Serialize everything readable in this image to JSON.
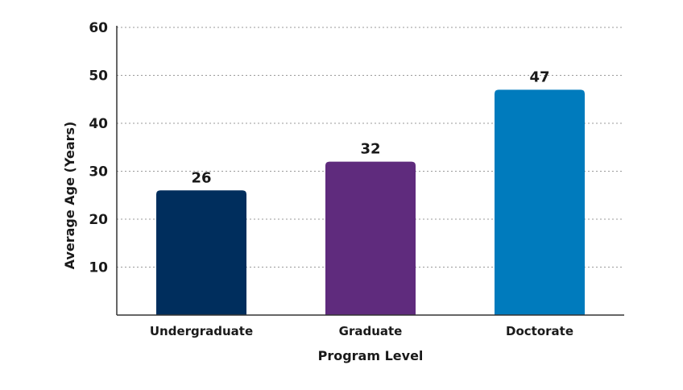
{
  "chart_data": {
    "type": "bar",
    "categories": [
      "Undergraduate",
      "Graduate",
      "Doctorate"
    ],
    "values": [
      26,
      32,
      47
    ],
    "data_labels": [
      "26",
      "32",
      "47"
    ],
    "colors": [
      "#002e5d",
      "#5f2b7d",
      "#007bbd"
    ],
    "title": "",
    "xlabel": "Program Level",
    "ylabel": "Average Age (Years)",
    "ylim": [
      0,
      60
    ],
    "yticks": [
      10,
      20,
      30,
      40,
      50,
      60
    ],
    "ytick_labels": [
      "10",
      "20",
      "30",
      "40",
      "50",
      "60"
    ],
    "grid": true,
    "legend": "none"
  }
}
